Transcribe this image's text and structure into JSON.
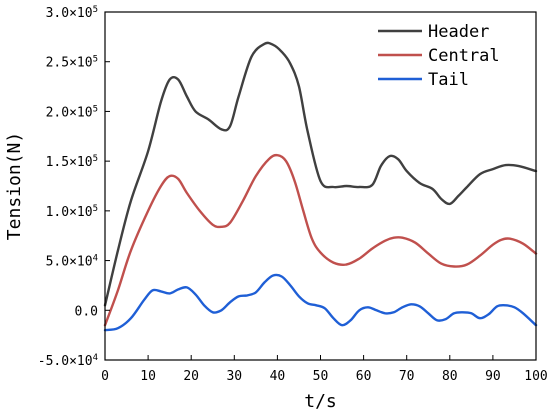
{
  "chart_data": {
    "type": "line",
    "xlabel": "t/s",
    "ylabel": "Tension(N)",
    "xlim": [
      0,
      100
    ],
    "ylim": [
      -50000,
      300000
    ],
    "xticks": [
      0,
      10,
      20,
      30,
      40,
      50,
      60,
      70,
      80,
      90,
      100
    ],
    "xtick_labels": [
      "0",
      "10",
      "20",
      "30",
      "40",
      "50",
      "60",
      "70",
      "80",
      "90",
      "100"
    ],
    "yticks": [
      {
        "value": -50000,
        "mantissa": "-5.0",
        "base": "×10",
        "exp": "4"
      },
      {
        "value": 0,
        "mantissa": "0.0",
        "base": "",
        "exp": ""
      },
      {
        "value": 50000,
        "mantissa": "5.0",
        "base": "×10",
        "exp": "4"
      },
      {
        "value": 100000,
        "mantissa": "1.0",
        "base": "×10",
        "exp": "5"
      },
      {
        "value": 150000,
        "mantissa": "1.5",
        "base": "×10",
        "exp": "5"
      },
      {
        "value": 200000,
        "mantissa": "2.0",
        "base": "×10",
        "exp": "5"
      },
      {
        "value": 250000,
        "mantissa": "2.5",
        "base": "×10",
        "exp": "5"
      },
      {
        "value": 300000,
        "mantissa": "3.0",
        "base": "×10",
        "exp": "5"
      }
    ],
    "grid": false,
    "legend_position": "top-right",
    "series": [
      {
        "name": "Header",
        "color": "#404040",
        "x": [
          0,
          3,
          6,
          10,
          13,
          15,
          17,
          19,
          21,
          24,
          27,
          29,
          31,
          34,
          37,
          39,
          41,
          43,
          45,
          47,
          50,
          53,
          56,
          59,
          62,
          64,
          66,
          68,
          70,
          73,
          76,
          78,
          80,
          82,
          84,
          87,
          90,
          93,
          96,
          100
        ],
        "y": [
          5000,
          60000,
          110000,
          160000,
          210000,
          232000,
          232000,
          215000,
          200000,
          192000,
          182000,
          185000,
          215000,
          255000,
          268000,
          267000,
          260000,
          248000,
          225000,
          180000,
          130000,
          124000,
          125000,
          124000,
          126000,
          145000,
          155000,
          152000,
          140000,
          128000,
          122000,
          112000,
          107000,
          115000,
          124000,
          137000,
          142000,
          146000,
          145000,
          140000
        ]
      },
      {
        "name": "Central",
        "color": "#c0504d",
        "x": [
          0,
          3,
          6,
          10,
          13,
          15,
          17,
          19,
          22,
          25,
          27,
          29,
          32,
          35,
          38,
          40,
          42,
          44,
          46,
          48,
          50,
          53,
          56,
          59,
          62,
          65,
          67,
          69,
          72,
          75,
          78,
          81,
          84,
          87,
          90,
          92,
          94,
          97,
          100
        ],
        "y": [
          -15000,
          20000,
          60000,
          100000,
          125000,
          135000,
          132000,
          118000,
          100000,
          86000,
          84000,
          88000,
          110000,
          135000,
          152000,
          156000,
          150000,
          130000,
          100000,
          72000,
          58000,
          48000,
          46000,
          52000,
          62000,
          70000,
          73000,
          73000,
          68000,
          57000,
          47000,
          44000,
          46000,
          55000,
          66000,
          71000,
          72000,
          67000,
          57000
        ]
      },
      {
        "name": "Tail",
        "color": "#1f5fd6",
        "x": [
          0,
          3,
          6,
          9,
          11,
          13,
          15,
          17,
          19,
          21,
          23,
          25,
          27,
          29,
          31,
          33,
          35,
          37,
          39,
          41,
          43,
          45,
          47,
          49,
          51,
          53,
          55,
          57,
          59,
          61,
          63,
          65,
          67,
          69,
          71,
          73,
          75,
          77,
          79,
          81,
          83,
          85,
          87,
          89,
          91,
          93,
          95,
          97,
          100
        ],
        "y": [
          -20000,
          -18000,
          -8000,
          10000,
          20000,
          19000,
          17000,
          21000,
          23000,
          16000,
          5000,
          -2000,
          0,
          8000,
          14000,
          15000,
          18000,
          28000,
          35000,
          34000,
          25000,
          14000,
          7000,
          5000,
          2000,
          -8000,
          -15000,
          -10000,
          0,
          3000,
          0,
          -3000,
          -2000,
          3000,
          6000,
          4000,
          -3000,
          -10000,
          -9000,
          -3000,
          -2000,
          -3000,
          -8000,
          -4000,
          4000,
          5000,
          3000,
          -3000,
          -15000
        ]
      }
    ]
  }
}
